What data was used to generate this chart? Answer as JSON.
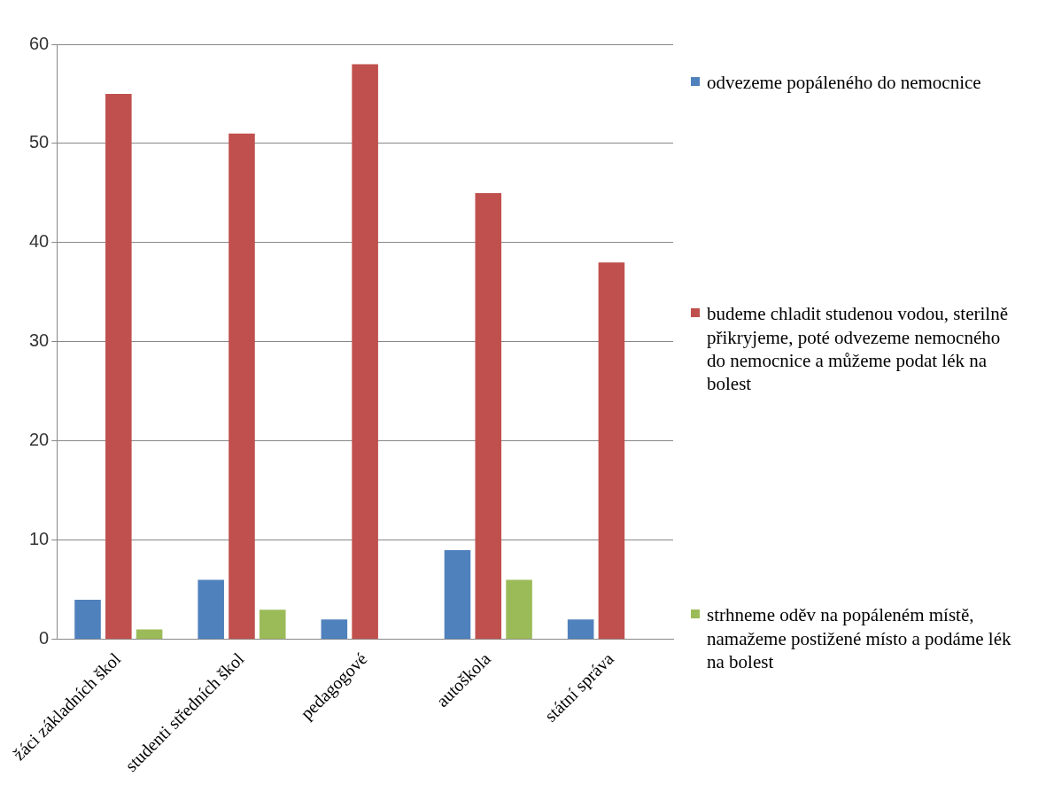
{
  "chart_data": {
    "type": "bar",
    "categories": [
      "žáci základních škol",
      "studenti středních škol",
      "pedagogové",
      "autoškola",
      "státní správa"
    ],
    "series": [
      {
        "name": "odvezeme popáleného do nemocnice",
        "color": "#4f81bd",
        "values": [
          4,
          6,
          2,
          9,
          2
        ]
      },
      {
        "name": "budeme chladit studenou vodou, sterilně přikryjeme, poté odvezeme nemocného do nemocnice a můžeme podat lék na bolest",
        "color": "#c0504d",
        "values": [
          55,
          51,
          58,
          45,
          38
        ]
      },
      {
        "name": "strhneme oděv na popáleném místě, namažeme postižené místo a podáme lék na bolest",
        "color": "#9bbb59",
        "values": [
          1,
          3,
          0,
          6,
          0
        ]
      }
    ],
    "ylim": [
      0,
      60
    ],
    "yticks": [
      0,
      10,
      20,
      30,
      40,
      50,
      60
    ],
    "grid": "y",
    "legend": "right"
  }
}
